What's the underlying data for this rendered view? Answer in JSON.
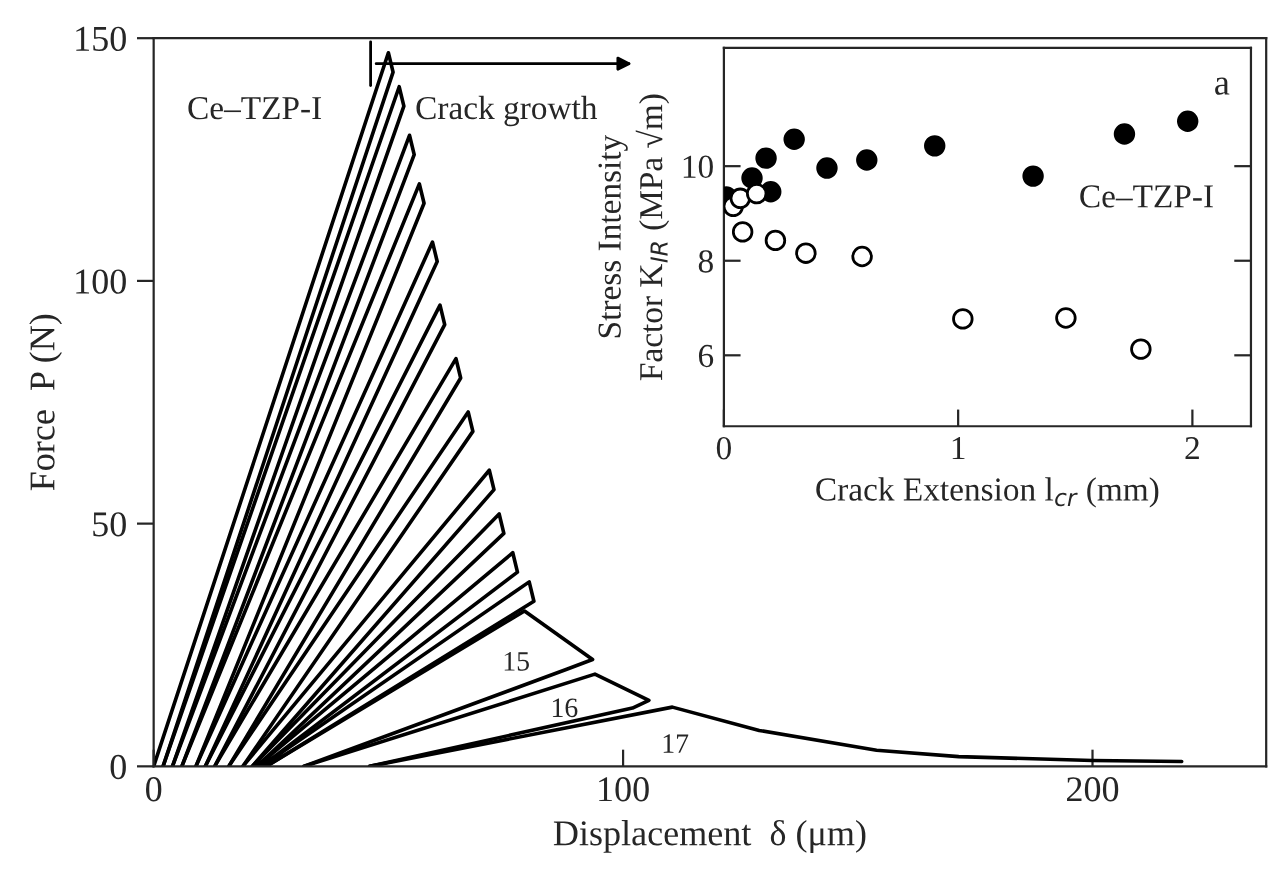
{
  "chart_data": [
    {
      "type": "line",
      "xlabel": "Displacement  δ (μm)",
      "ylabel": "Force  P (N)",
      "xlim": [
        0,
        237
      ],
      "ylim": [
        0,
        150
      ],
      "xticks": [
        0,
        100,
        200
      ],
      "yticks": [
        0,
        50,
        100,
        150
      ],
      "grid": false,
      "legend": false,
      "marker": "none",
      "line_style": "solid",
      "annotations": [
        "Ce–TZP-I",
        "Crack growth"
      ],
      "series": [
        {
          "color": "#000000",
          "x": [
            0,
            50,
            51,
            2
          ],
          "values": [
            0,
            147,
            143,
            0
          ]
        },
        {
          "color": "#000000",
          "x": [
            2,
            52.3,
            53.3,
            4
          ],
          "values": [
            0,
            140,
            136,
            0
          ]
        },
        {
          "color": "#000000",
          "x": [
            4,
            54.5,
            55.5,
            6
          ],
          "values": [
            0,
            130,
            126,
            0
          ]
        },
        {
          "color": "#000000",
          "x": [
            6,
            56.6,
            57.6,
            9
          ],
          "values": [
            0,
            120,
            116,
            0
          ]
        },
        {
          "color": "#000000",
          "x": [
            9,
            59.4,
            60.4,
            11
          ],
          "values": [
            0,
            108,
            104,
            0
          ]
        },
        {
          "color": "#000000",
          "x": [
            11,
            61,
            62,
            13
          ],
          "values": [
            0,
            95,
            91,
            0
          ]
        },
        {
          "color": "#000000",
          "x": [
            13,
            64.4,
            65.4,
            16
          ],
          "values": [
            0,
            84,
            80,
            0
          ]
        },
        {
          "color": "#000000",
          "x": [
            16,
            67,
            68,
            19
          ],
          "values": [
            0,
            73,
            69,
            0
          ]
        },
        {
          "color": "#000000",
          "x": [
            19,
            71.5,
            72.5,
            21
          ],
          "values": [
            0,
            61,
            57,
            0
          ]
        },
        {
          "color": "#000000",
          "x": [
            21,
            73.6,
            74.6,
            22
          ],
          "values": [
            0,
            52,
            48,
            0
          ]
        },
        {
          "color": "#000000",
          "x": [
            22,
            76.5,
            77.5,
            23
          ],
          "values": [
            0,
            44,
            40,
            0
          ]
        },
        {
          "color": "#000000",
          "x": [
            23,
            80,
            81,
            24
          ],
          "values": [
            0,
            38,
            34,
            0
          ]
        },
        {
          "name": "15",
          "color": "#000000",
          "x": [
            24,
            79,
            93.5,
            88,
            32
          ],
          "values": [
            0,
            32,
            22,
            20,
            0
          ]
        },
        {
          "name": "16",
          "color": "#000000",
          "x": [
            32,
            94,
            105.5,
            102,
            46
          ],
          "values": [
            0,
            19,
            13.6,
            12,
            0
          ]
        },
        {
          "name": "17",
          "color": "#000000",
          "x": [
            46,
            110.5,
            129,
            154,
            171.5,
            200,
            219
          ],
          "values": [
            0,
            12.2,
            7.4,
            3.3,
            2,
            1.2,
            1
          ]
        }
      ]
    },
    {
      "type": "scatter",
      "xlabel": "Crack Extension l$_{cr}$ (mm)",
      "ylabel": "Stress Intensity\nFactor K$_{IR}$ (MPa √m)",
      "xlim": [
        0,
        2.25
      ],
      "ylim": [
        4.5,
        12.5
      ],
      "xticks": [
        0,
        1,
        2
      ],
      "yticks": [
        6,
        8,
        10
      ],
      "grid": false,
      "legend": false,
      "marker": "circle",
      "annotations": [
        "a",
        "Ce–TZP-I"
      ],
      "series": [
        {
          "color": "#000000",
          "x": [
            0.01,
            0.12,
            0.18,
            0.2,
            0.3,
            0.44,
            0.61,
            0.9,
            1.32,
            1.71,
            1.98
          ],
          "values": [
            9.35,
            9.75,
            10.17,
            9.46,
            10.57,
            9.96,
            10.13,
            10.43,
            9.79,
            10.68,
            10.95
          ]
        },
        {
          "color": "#ffffff",
          "x": [
            0.04,
            0.07,
            0.08,
            0.14,
            0.22,
            0.35,
            0.59,
            1.02,
            1.46,
            1.78
          ],
          "values": [
            9.15,
            9.32,
            8.61,
            9.42,
            8.43,
            8.16,
            8.09,
            6.77,
            6.79,
            6.13
          ]
        }
      ]
    }
  ]
}
